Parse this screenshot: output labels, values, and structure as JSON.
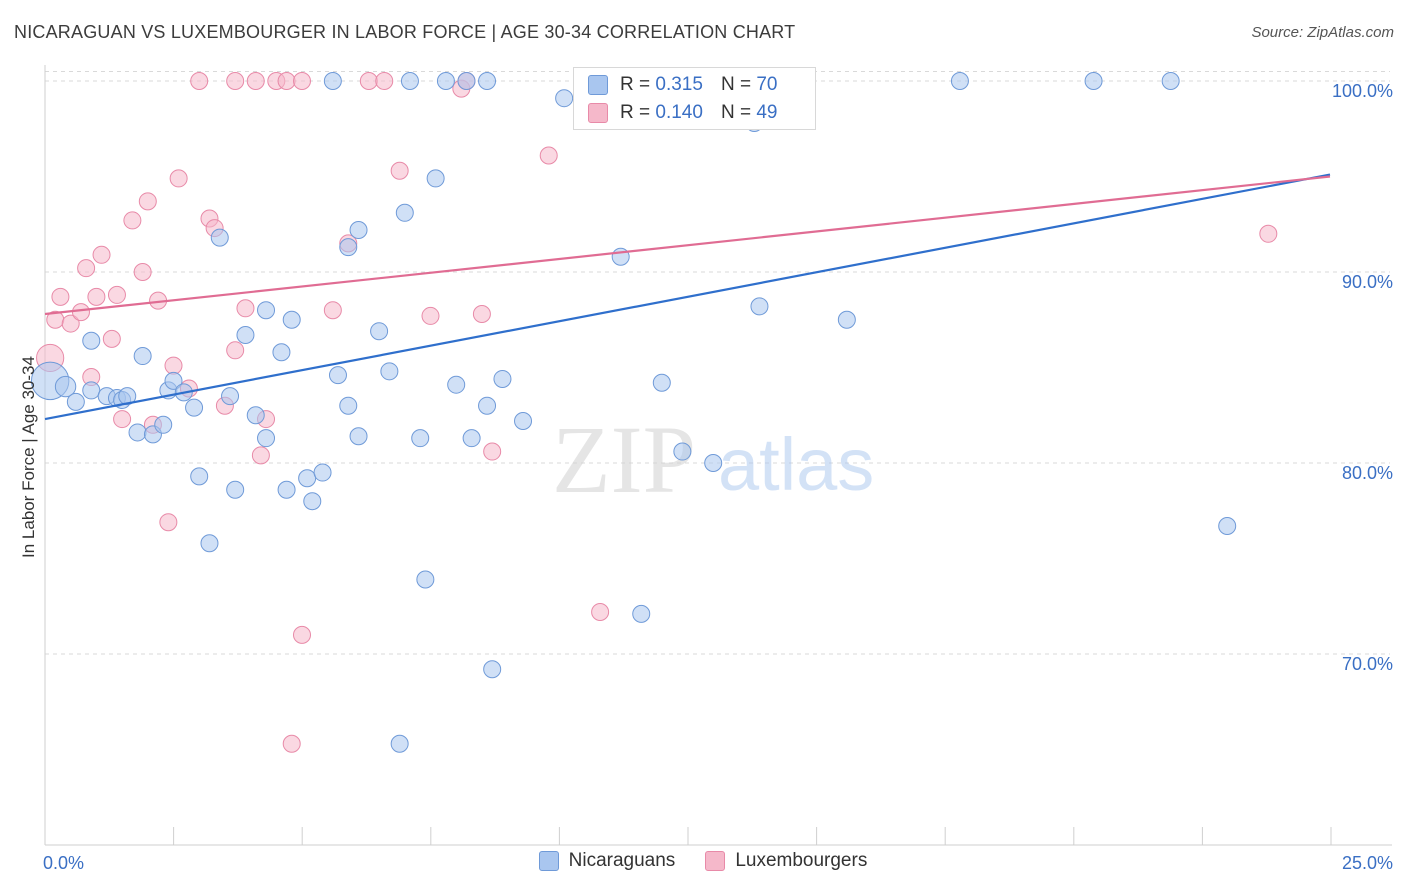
{
  "title": "NICARAGUAN VS LUXEMBOURGER IN LABOR FORCE | AGE 30-34 CORRELATION CHART",
  "source": "Source: ZipAtlas.com",
  "watermark": {
    "zip": "ZIP",
    "atlas": "atlas"
  },
  "stats": [
    {
      "r_label": "R =",
      "r": "0.315",
      "n_label": "N =",
      "n": "70"
    },
    {
      "r_label": "R =",
      "r": "0.140",
      "n_label": "N =",
      "n": "49"
    }
  ],
  "colors": {
    "blue_fill": "#a9c6ef",
    "blue_edge": "#6f9ad8",
    "blue_line": "#2f6fcc",
    "pink_fill": "#f5b8ca",
    "pink_edge": "#e88aa8",
    "pink_line": "#e06c93",
    "axis_text": "#3a6fc4",
    "grid": "#d9d9d9"
  },
  "chart_data": {
    "type": "scatter",
    "title": "NICARAGUAN VS LUXEMBOURGER IN LABOR FORCE | AGE 30-34 CORRELATION CHART",
    "ylabel": "In Labor Force | Age 30-34",
    "xlabel": "",
    "xlim": [
      0,
      25
    ],
    "ylim": [
      60,
      102
    ],
    "x_tick_labels": [
      "0.0%",
      "25.0%"
    ],
    "y_ticks": [
      70,
      80,
      90,
      100
    ],
    "y_tick_labels": [
      "70.0%",
      "80.0%",
      "90.0%",
      "100.0%"
    ],
    "grid": "horizontal dashed",
    "legend": "bottom",
    "series": [
      {
        "name": "Nicaraguans",
        "color": "#a9c6ef",
        "trend": {
          "x": [
            0,
            25
          ],
          "y": [
            82.3,
            95.1
          ]
        },
        "points": [
          [
            0.1,
            84.3,
            2.2
          ],
          [
            0.4,
            84.0,
            1.2
          ],
          [
            0.6,
            83.2,
            1.0
          ],
          [
            0.9,
            83.8,
            1.0
          ],
          [
            0.9,
            86.4,
            1.0
          ],
          [
            1.2,
            83.5,
            1.0
          ],
          [
            1.4,
            83.4,
            1.0
          ],
          [
            1.5,
            83.3,
            1.0
          ],
          [
            1.6,
            83.5,
            1.0
          ],
          [
            1.8,
            81.6,
            1.0
          ],
          [
            1.9,
            85.6,
            1.0
          ],
          [
            2.1,
            81.5,
            1.0
          ],
          [
            2.3,
            82.0,
            1.0
          ],
          [
            2.4,
            83.8,
            1.0
          ],
          [
            2.5,
            84.3,
            1.0
          ],
          [
            2.7,
            83.7,
            1.0
          ],
          [
            2.9,
            82.9,
            1.0
          ],
          [
            3.0,
            79.3,
            1.0
          ],
          [
            3.2,
            75.8,
            1.0
          ],
          [
            3.4,
            91.8,
            1.0
          ],
          [
            3.6,
            83.5,
            1.0
          ],
          [
            3.7,
            78.6,
            1.0
          ],
          [
            3.9,
            86.7,
            1.0
          ],
          [
            4.1,
            82.5,
            1.0
          ],
          [
            4.3,
            88.0,
            1.0
          ],
          [
            4.3,
            81.3,
            1.0
          ],
          [
            4.6,
            85.8,
            1.0
          ],
          [
            4.7,
            78.6,
            1.0
          ],
          [
            4.8,
            87.5,
            1.0
          ],
          [
            5.1,
            79.2,
            1.0
          ],
          [
            5.2,
            78.0,
            1.0
          ],
          [
            5.4,
            79.5,
            1.0
          ],
          [
            5.6,
            100.0,
            1.0
          ],
          [
            5.7,
            84.6,
            1.0
          ],
          [
            5.9,
            83.0,
            1.0
          ],
          [
            5.9,
            91.3,
            1.0
          ],
          [
            6.1,
            81.4,
            1.0
          ],
          [
            6.1,
            92.2,
            1.0
          ],
          [
            6.5,
            86.9,
            1.0
          ],
          [
            6.7,
            84.8,
            1.0
          ],
          [
            6.9,
            65.3,
            1.0
          ],
          [
            7.0,
            93.1,
            1.0
          ],
          [
            7.1,
            100.0,
            1.0
          ],
          [
            7.3,
            81.3,
            1.0
          ],
          [
            7.4,
            73.9,
            1.0
          ],
          [
            7.6,
            94.9,
            1.0
          ],
          [
            7.8,
            100.0,
            1.0
          ],
          [
            8.0,
            84.1,
            1.0
          ],
          [
            8.2,
            100.0,
            1.0
          ],
          [
            8.3,
            81.3,
            1.0
          ],
          [
            8.6,
            83.0,
            1.0
          ],
          [
            8.6,
            100.0,
            1.0
          ],
          [
            8.7,
            69.2,
            1.0
          ],
          [
            8.9,
            84.4,
            1.0
          ],
          [
            9.3,
            82.2,
            1.0
          ],
          [
            10.1,
            99.1,
            1.0
          ],
          [
            11.2,
            90.8,
            1.0
          ],
          [
            11.6,
            72.1,
            1.0
          ],
          [
            11.8,
            100.0,
            1.0
          ],
          [
            12.0,
            84.2,
            1.0
          ],
          [
            12.4,
            80.6,
            1.0
          ],
          [
            13.0,
            80.0,
            1.0
          ],
          [
            13.0,
            100.0,
            1.0
          ],
          [
            13.8,
            97.8,
            1.0
          ],
          [
            13.9,
            88.2,
            1.0
          ],
          [
            13.8,
            100.0,
            1.0
          ],
          [
            13.5,
            100.0,
            1.0
          ],
          [
            15.6,
            87.5,
            1.0
          ],
          [
            17.8,
            100.0,
            1.0
          ],
          [
            20.4,
            100.0,
            1.0
          ],
          [
            21.9,
            100.0,
            1.0
          ],
          [
            23.0,
            76.7,
            1.0
          ]
        ]
      },
      {
        "name": "Luxembourgers",
        "color": "#f5b8ca",
        "trend": {
          "x": [
            0,
            25
          ],
          "y": [
            87.8,
            95.0
          ]
        },
        "points": [
          [
            0.1,
            85.5,
            1.6
          ],
          [
            0.2,
            87.5,
            1.0
          ],
          [
            0.3,
            88.7,
            1.0
          ],
          [
            0.5,
            87.3,
            1.0
          ],
          [
            0.7,
            87.9,
            1.0
          ],
          [
            0.8,
            90.2,
            1.0
          ],
          [
            0.9,
            84.5,
            1.0
          ],
          [
            1.0,
            88.7,
            1.0
          ],
          [
            1.1,
            90.9,
            1.0
          ],
          [
            1.3,
            86.5,
            1.0
          ],
          [
            1.4,
            88.8,
            1.0
          ],
          [
            1.5,
            82.3,
            1.0
          ],
          [
            1.7,
            92.7,
            1.0
          ],
          [
            1.9,
            90.0,
            1.0
          ],
          [
            2.0,
            93.7,
            1.0
          ],
          [
            2.1,
            82.0,
            1.0
          ],
          [
            2.2,
            88.5,
            1.0
          ],
          [
            2.4,
            76.9,
            1.0
          ],
          [
            2.5,
            85.1,
            1.0
          ],
          [
            2.6,
            94.9,
            1.0
          ],
          [
            2.8,
            83.9,
            1.0
          ],
          [
            3.0,
            100.0,
            1.0
          ],
          [
            3.2,
            92.8,
            1.0
          ],
          [
            3.3,
            92.3,
            1.0
          ],
          [
            3.5,
            83.0,
            1.0
          ],
          [
            3.7,
            85.9,
            1.0
          ],
          [
            3.7,
            100.0,
            1.0
          ],
          [
            3.9,
            88.1,
            1.0
          ],
          [
            4.1,
            100.0,
            1.0
          ],
          [
            4.2,
            80.4,
            1.0
          ],
          [
            4.3,
            82.3,
            1.0
          ],
          [
            4.5,
            100.0,
            1.0
          ],
          [
            4.7,
            100.0,
            1.0
          ],
          [
            4.8,
            65.3,
            1.0
          ],
          [
            5.0,
            100.0,
            1.0
          ],
          [
            5.0,
            71.0,
            1.0
          ],
          [
            5.6,
            88.0,
            1.0
          ],
          [
            5.9,
            91.5,
            1.0
          ],
          [
            6.3,
            100.0,
            1.0
          ],
          [
            6.6,
            100.0,
            1.0
          ],
          [
            6.9,
            95.3,
            1.0
          ],
          [
            7.5,
            87.7,
            1.0
          ],
          [
            8.1,
            99.6,
            1.0
          ],
          [
            8.2,
            100.0,
            1.0
          ],
          [
            8.5,
            87.8,
            1.0
          ],
          [
            8.7,
            80.6,
            1.0
          ],
          [
            9.8,
            96.1,
            1.0
          ],
          [
            10.8,
            72.2,
            1.0
          ],
          [
            23.8,
            92.0,
            1.0
          ]
        ]
      }
    ]
  }
}
